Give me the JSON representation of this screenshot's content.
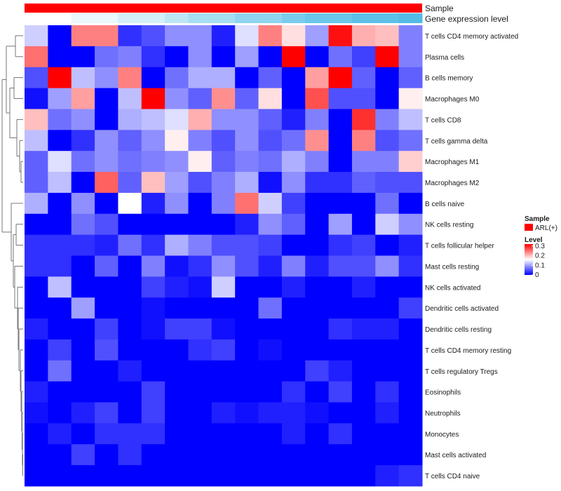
{
  "chart_data": {
    "type": "heatmap",
    "title": "",
    "annotation_tracks": [
      {
        "name": "Sample",
        "colors": [
          "#ff0000"
        ]
      },
      {
        "name": "Gene expression level",
        "colors": [
          "#ffffff",
          "#eaf7fb",
          "#d4eff8",
          "#bde6f5",
          "#a6def2",
          "#8fd5ef",
          "#7accec",
          "#6ac6ea",
          "#5dc0e8",
          "#52bce6"
        ]
      }
    ],
    "columns": 17,
    "rows": [
      "T cells CD4 memory activated",
      "Plasma cells",
      "B cells memory",
      "Macrophages M0",
      "T cells CD8",
      "T cells gamma delta",
      "Macrophages M1",
      "Macrophages M2",
      "B cells naive",
      "NK cells resting",
      "T cells follicular helper",
      "Mast cells resting",
      "NK cells activated",
      "Dendritic cells activated",
      "Dendritic cells resting",
      "T cells CD4 memory resting",
      "T cells regulatory  Tregs",
      "Eosinophils",
      "Neutrophils",
      "Monocytes",
      "Mast cells activated",
      "T cells CD4 naive"
    ],
    "values": [
      [
        0.13,
        0.0,
        0.24,
        0.24,
        0.03,
        0.05,
        0.09,
        0.09,
        0.02,
        0.14,
        0.24,
        0.18,
        0.1,
        0.31,
        0.21,
        0.2,
        0.08
      ],
      [
        0.25,
        0.0,
        0.0,
        0.07,
        0.08,
        0.03,
        0.0,
        0.09,
        0.0,
        0.1,
        0.0,
        0.32,
        0.0,
        0.07,
        0.04,
        0.32,
        0.08
      ],
      [
        0.05,
        0.32,
        0.12,
        0.09,
        0.24,
        0.0,
        0.07,
        0.11,
        0.11,
        0.0,
        0.06,
        0.0,
        0.22,
        0.32,
        0.06,
        0.0,
        0.06
      ],
      [
        0.01,
        0.1,
        0.22,
        0.0,
        0.12,
        0.32,
        0.09,
        0.06,
        0.23,
        0.06,
        0.18,
        0.0,
        0.27,
        0.05,
        0.05,
        0.0,
        0.17
      ],
      [
        0.2,
        0.07,
        0.09,
        0.0,
        0.11,
        0.12,
        0.14,
        0.21,
        0.09,
        0.09,
        0.06,
        0.02,
        0.08,
        0.0,
        0.29,
        0.08,
        0.12
      ],
      [
        0.12,
        0.0,
        0.03,
        0.09,
        0.06,
        0.09,
        0.17,
        0.08,
        0.05,
        0.09,
        0.05,
        0.07,
        0.23,
        0.0,
        0.24,
        0.05,
        0.07
      ],
      [
        0.06,
        0.14,
        0.07,
        0.09,
        0.07,
        0.08,
        0.09,
        0.17,
        0.06,
        0.08,
        0.07,
        0.11,
        0.08,
        0.0,
        0.08,
        0.08,
        0.19
      ],
      [
        0.06,
        0.12,
        0.0,
        0.26,
        0.06,
        0.2,
        0.1,
        0.05,
        0.08,
        0.11,
        0.01,
        0.09,
        0.03,
        0.03,
        0.06,
        0.05,
        0.05
      ],
      [
        0.11,
        0.0,
        0.09,
        0.0,
        0.16,
        0.02,
        0.09,
        0.0,
        0.08,
        0.25,
        0.13,
        0.04,
        0.0,
        0.0,
        0.0,
        0.07,
        0.0
      ],
      [
        0.0,
        0.0,
        0.07,
        0.05,
        0.0,
        0.0,
        0.0,
        0.0,
        0.0,
        0.02,
        0.09,
        0.06,
        0.0,
        0.1,
        0.0,
        0.13,
        0.09
      ],
      [
        0.03,
        0.03,
        0.03,
        0.02,
        0.07,
        0.03,
        0.11,
        0.08,
        0.05,
        0.05,
        0.04,
        0.0,
        0.0,
        0.03,
        0.04,
        0.0,
        0.02
      ],
      [
        0.03,
        0.03,
        0.0,
        0.06,
        0.0,
        0.08,
        0.01,
        0.03,
        0.09,
        0.05,
        0.02,
        0.08,
        0.02,
        0.05,
        0.05,
        0.09,
        0.03
      ],
      [
        0.0,
        0.12,
        0.0,
        0.0,
        0.0,
        0.04,
        0.02,
        0.01,
        0.13,
        0.0,
        0.0,
        0.02,
        0.0,
        0.0,
        0.02,
        0.0,
        0.0
      ],
      [
        0.0,
        0.0,
        0.1,
        0.0,
        0.0,
        0.01,
        0.0,
        0.0,
        0.0,
        0.0,
        0.07,
        0.0,
        0.0,
        0.0,
        0.0,
        0.0,
        0.04
      ],
      [
        0.02,
        0.0,
        0.0,
        0.04,
        0.0,
        0.01,
        0.04,
        0.04,
        0.01,
        0.0,
        0.0,
        0.0,
        0.0,
        0.03,
        0.02,
        0.02,
        0.0
      ],
      [
        0.0,
        0.04,
        0.0,
        0.05,
        0.0,
        0.0,
        0.0,
        0.03,
        0.04,
        0.0,
        0.01,
        0.0,
        0.0,
        0.0,
        0.0,
        0.0,
        0.0
      ],
      [
        0.0,
        0.07,
        0.0,
        0.0,
        0.02,
        0.0,
        0.0,
        0.0,
        0.0,
        0.0,
        0.0,
        0.0,
        0.04,
        0.02,
        0.0,
        0.0,
        0.0
      ],
      [
        0.02,
        0.0,
        0.0,
        0.0,
        0.0,
        0.04,
        0.0,
        0.0,
        0.0,
        0.0,
        0.0,
        0.03,
        0.0,
        0.04,
        0.0,
        0.03,
        0.0
      ],
      [
        0.01,
        0.0,
        0.02,
        0.04,
        0.0,
        0.04,
        0.0,
        0.0,
        0.02,
        0.01,
        0.02,
        0.02,
        0.01,
        0.0,
        0.0,
        0.02,
        0.0
      ],
      [
        0.0,
        0.02,
        0.0,
        0.03,
        0.03,
        0.03,
        0.0,
        0.0,
        0.0,
        0.0,
        0.0,
        0.02,
        0.0,
        0.03,
        0.0,
        0.0,
        0.0
      ],
      [
        0.0,
        0.0,
        0.04,
        0.0,
        0.03,
        0.0,
        0.0,
        0.0,
        0.0,
        0.0,
        0.0,
        0.0,
        0.0,
        0.0,
        0.0,
        0.0,
        0.0
      ],
      [
        0.0,
        0.0,
        0.0,
        0.0,
        0.0,
        0.0,
        0.0,
        0.0,
        0.0,
        0.0,
        0.0,
        0.0,
        0.0,
        0.0,
        0.0,
        0.02,
        0.03
      ]
    ],
    "color_scale": {
      "min": 0,
      "max": 0.32,
      "low": "#0000ff",
      "mid": "#ffffff",
      "high": "#ff0000",
      "mid_value": 0.16
    },
    "legends": {
      "sample": {
        "title": "Sample",
        "entries": [
          {
            "label": "ARL(+)",
            "color": "#ff0000"
          }
        ]
      },
      "level": {
        "title": "Level",
        "ticks": [
          "0.3",
          "0.2",
          "0.1",
          "0"
        ],
        "tick_values": [
          0.3,
          0.2,
          0.1,
          0
        ]
      }
    }
  }
}
